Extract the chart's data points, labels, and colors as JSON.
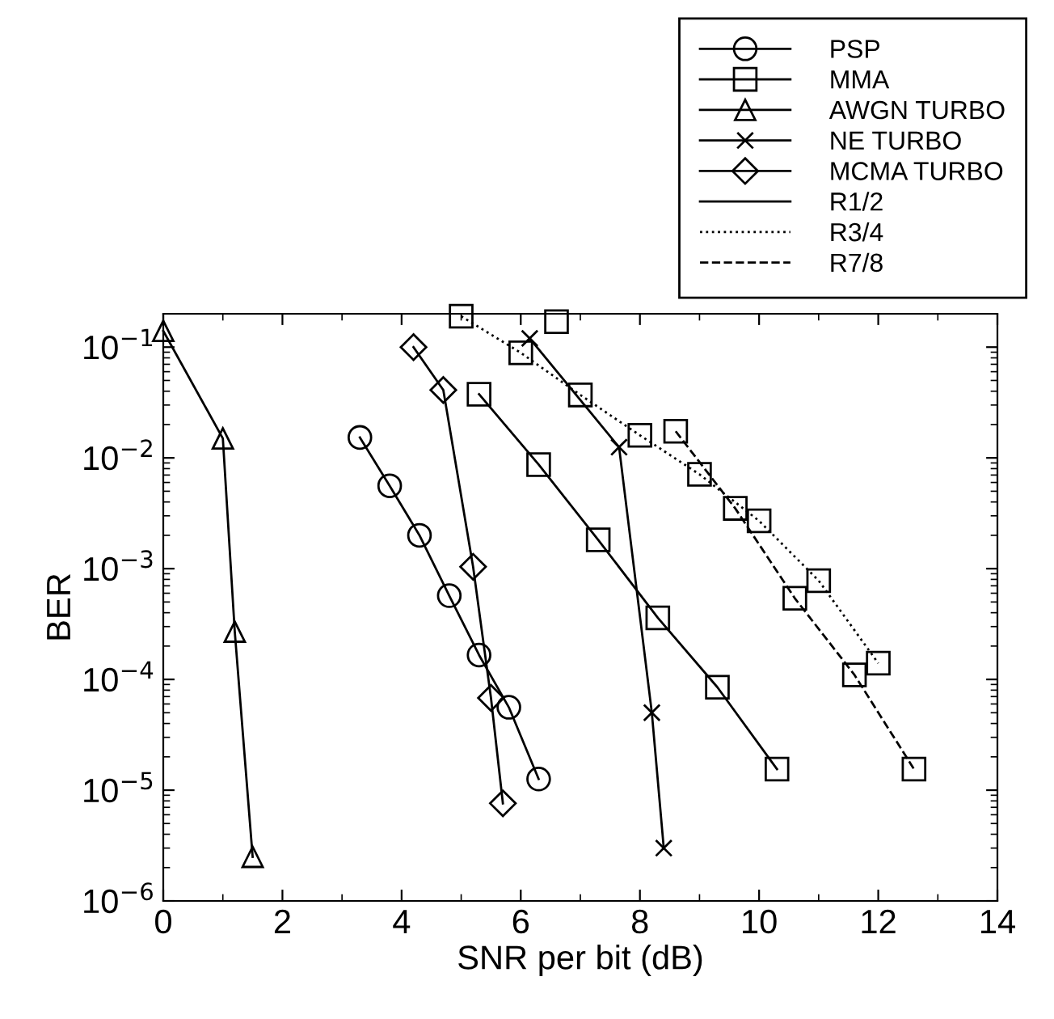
{
  "chart_data": {
    "type": "line",
    "xlabel": "SNR per bit (dB)",
    "ylabel": "BER",
    "log": "y",
    "xlim": [
      0,
      14
    ],
    "xticks": [
      0,
      2,
      4,
      6,
      8,
      10,
      12,
      14
    ],
    "ylim": [
      1e-06,
      0.2
    ],
    "yticks": [
      {
        "value": 0.1,
        "label": "10$^{−1}$"
      },
      {
        "value": 0.01,
        "label": "10$^{−2}$"
      },
      {
        "value": 0.001,
        "label": "10$^{−3}$"
      },
      {
        "value": 0.0001,
        "label": "10$^{−4}$"
      },
      {
        "value": 1e-05,
        "label": "10$^{−5}$"
      },
      {
        "value": 1e-06,
        "label": "10$^{−6}$"
      }
    ],
    "grid": false,
    "legend": "top right",
    "series": [
      {
        "name": "PSP",
        "color": "#000000",
        "marker": "circle",
        "line_style": "solid",
        "x": [
          3.3,
          3.8,
          4.3,
          4.8,
          5.3,
          5.8,
          6.3
        ],
        "values": [
          0.0153,
          0.0056,
          0.002,
          0.00057,
          0.000166,
          5.6e-05,
          1.26e-05
        ]
      },
      {
        "name": "MMA",
        "color": "#000000",
        "marker": "square",
        "line_style": "solid",
        "x": [
          5.3,
          6.3,
          7.3,
          8.3,
          9.3,
          10.3
        ],
        "values": [
          0.0376,
          0.0087,
          0.00182,
          0.00036,
          8.5e-05,
          1.55e-05
        ]
      },
      {
        "name": "AWGN TURBO",
        "color": "#000000",
        "marker": "triangle",
        "line_style": "solid",
        "x": [
          0,
          1.0,
          1.2,
          1.5
        ],
        "values": [
          0.14,
          0.015,
          0.00027,
          2.5e-06
        ]
      },
      {
        "name": "NE TURBO",
        "color": "#000000",
        "marker": "cross",
        "line_style": "solid",
        "x": [
          6.15,
          7.65,
          8.2,
          8.4
        ],
        "values": [
          0.12,
          0.0125,
          5e-05,
          3e-06
        ]
      },
      {
        "name": "MCMA TURBO",
        "color": "#000000",
        "marker": "diamond",
        "line_style": "solid",
        "x": [
          4.2,
          4.7,
          5.2,
          5.5,
          5.7
        ],
        "values": [
          0.1,
          0.041,
          0.00104,
          6.8e-05,
          7.6e-06
        ]
      },
      {
        "name": "R1/2",
        "color": "#000000",
        "marker": "none",
        "line_style": "solid"
      },
      {
        "name": "R3/4",
        "color": "#000000",
        "marker": "square",
        "line_style": "dotted",
        "x": [
          5,
          6,
          7,
          8,
          9,
          10,
          11,
          12
        ],
        "values": [
          0.19,
          0.089,
          0.037,
          0.016,
          0.0071,
          0.0027,
          0.00078,
          0.00014
        ]
      },
      {
        "name": "R7/8",
        "color": "#000000",
        "marker": "square",
        "line_style": "dashed",
        "x": [
          6.6,
          7.6,
          8.6,
          9.6,
          10.6,
          11.6,
          12.6
        ],
        "values": [
          0.17,
          null,
          0.0174,
          0.0035,
          0.00054,
          0.00011,
          1.55e-05
        ]
      }
    ]
  }
}
